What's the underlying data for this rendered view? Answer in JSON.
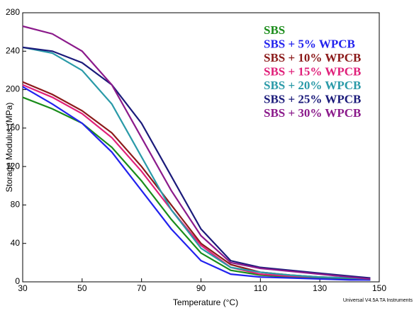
{
  "chart_data": {
    "type": "line",
    "x_label": "Temperature (°C)",
    "y_label": "Storage Modulus (MPa)",
    "footer": "Universal V4.5A TA Instruments",
    "x": [
      30,
      40,
      50,
      60,
      70,
      80,
      90,
      100,
      110,
      120,
      130,
      140,
      147
    ],
    "series": [
      {
        "name": "SBS",
        "color": "#1a8c1a",
        "values": [
          192,
          180,
          165,
          140,
          105,
          65,
          30,
          12,
          7,
          5,
          4,
          3,
          2
        ]
      },
      {
        "name": "SBS + 5% WPCB",
        "color": "#2222ee",
        "values": [
          203,
          185,
          165,
          135,
          95,
          55,
          22,
          8,
          5,
          4,
          3,
          2,
          2
        ]
      },
      {
        "name": "SBS + 10% WPCB",
        "color": "#8b1a1a",
        "values": [
          208,
          195,
          178,
          155,
          120,
          80,
          40,
          18,
          10,
          7,
          5,
          4,
          3
        ]
      },
      {
        "name": "SBS + 15% WPCB",
        "color": "#e0207a",
        "values": [
          205,
          192,
          175,
          150,
          115,
          75,
          38,
          15,
          8,
          6,
          5,
          4,
          3
        ]
      },
      {
        "name": "SBS + 20% WPCB",
        "color": "#2a9aa8",
        "values": [
          244,
          238,
          220,
          185,
          130,
          75,
          35,
          15,
          10,
          7,
          5,
          4,
          3
        ]
      },
      {
        "name": "SBS + 25% WPCB",
        "color": "#1a1a7a",
        "values": [
          244,
          240,
          228,
          205,
          165,
          110,
          55,
          22,
          15,
          12,
          9,
          6,
          4
        ]
      },
      {
        "name": "SBS + 30% WPCB",
        "color": "#8b1a8b",
        "values": [
          266,
          258,
          240,
          205,
          150,
          95,
          48,
          20,
          14,
          11,
          8,
          5,
          3
        ]
      }
    ],
    "xlim": [
      30,
      150
    ],
    "ylim": [
      0,
      280
    ],
    "xticks": [
      30,
      50,
      70,
      90,
      110,
      130,
      150
    ],
    "yticks": [
      0,
      40,
      80,
      120,
      160,
      200,
      240,
      280
    ]
  }
}
